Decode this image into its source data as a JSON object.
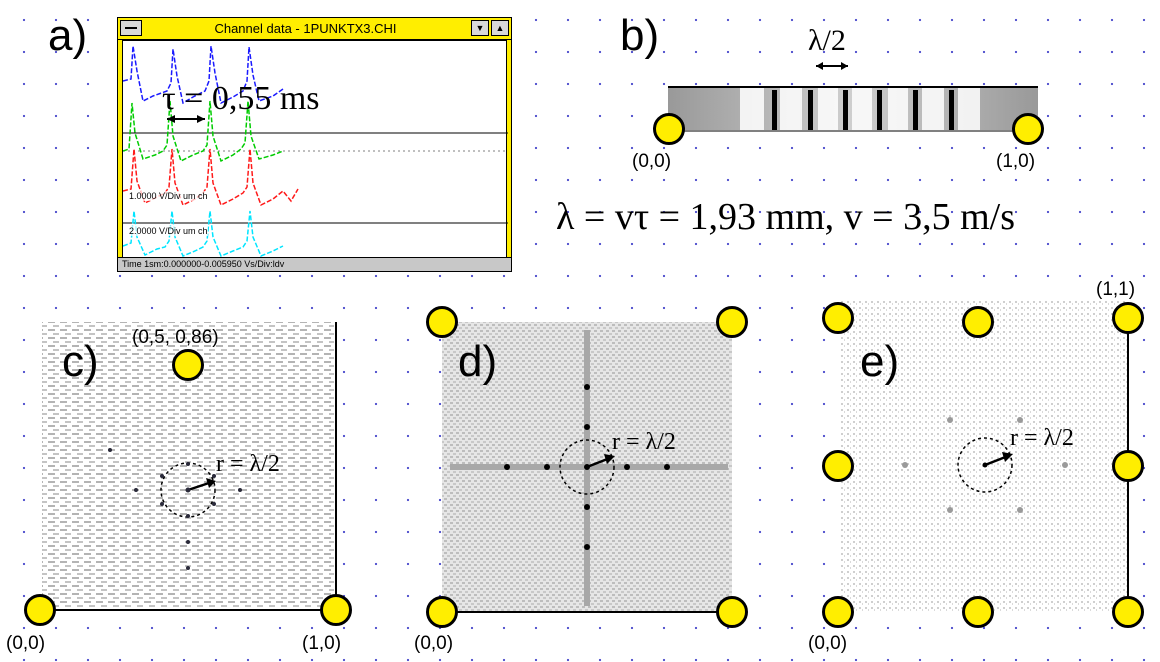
{
  "labels": {
    "a": "a)",
    "b": "b)",
    "c": "c)",
    "d": "d)",
    "e": "e)"
  },
  "window": {
    "title": "Channel data - 1PUNKTX3.CHI",
    "min_btn": "▼",
    "max_btn": "▲",
    "status": "Time 1sm:0.000000-0.005950 Vs/Div:ldv",
    "channel_labels": [
      "1.0000 V/Div um ch",
      "2.0000 V/Div um ch"
    ],
    "tau_label": "τ = 0,55 ms",
    "trace_colors": [
      "#1a1aff",
      "#00cc00",
      "#ff1a1a",
      "#00e5ff"
    ]
  },
  "panel_b": {
    "lambda_half": "λ/2",
    "coord_left": "(0,0)",
    "coord_right": "(1,0)",
    "formula": "λ = vτ = 1,93 mm, v = 3,5 m/s"
  },
  "panel_c": {
    "coord_top": "(0,5, 0,86)",
    "coord_bl": "(0,0)",
    "coord_br": "(1,0)",
    "radius_label": "r = λ/2"
  },
  "panel_d": {
    "coord_bl": "(0,0)",
    "radius_label": "r = λ/2"
  },
  "panel_e": {
    "coord_tr": "(1,1)",
    "coord_bl": "(0,0)",
    "radius_label": "r = λ/2"
  },
  "colors": {
    "node_fill": "#ffee00",
    "window_frame": "#ffee00",
    "grid_dot": "#5a5ad0",
    "pattern_gray": "#b0b0b0"
  }
}
